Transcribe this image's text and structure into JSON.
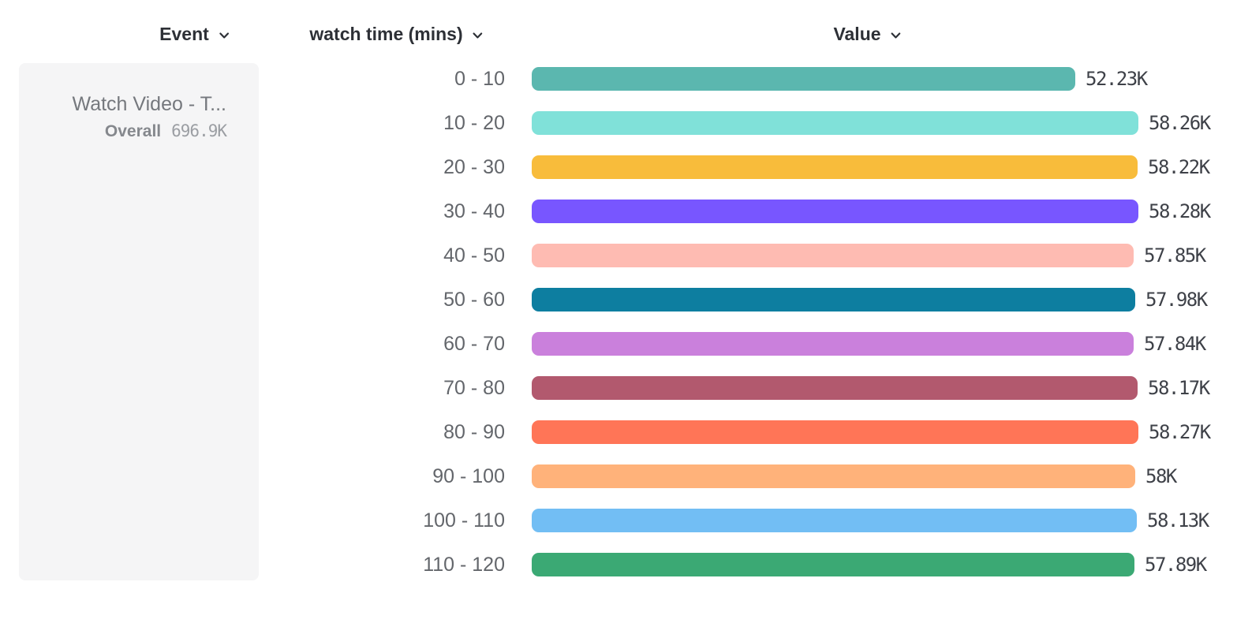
{
  "headers": {
    "items": [
      {
        "label": "Event",
        "icon": "chevron-down-icon"
      },
      {
        "label": "watch time (mins)",
        "icon": "chevron-down-icon"
      },
      {
        "label": "Value",
        "icon": "chevron-down-icon"
      }
    ]
  },
  "event_card": {
    "title": "Watch Video - T...",
    "overall_label": "Overall",
    "overall_value": "696.9K"
  },
  "chart_data": {
    "type": "bar",
    "orientation": "horizontal",
    "title": "",
    "xlabel": "Value",
    "ylabel": "watch time (mins)",
    "categories": [
      "0 - 10",
      "10 - 20",
      "20 - 30",
      "30 - 40",
      "40 - 50",
      "50 - 60",
      "60 - 70",
      "70 - 80",
      "80 - 90",
      "90 - 100",
      "100 - 110",
      "110 - 120"
    ],
    "values_thousands": [
      52.23,
      58.26,
      58.22,
      58.28,
      57.85,
      57.98,
      57.84,
      58.17,
      58.27,
      58,
      58.13,
      57.89
    ],
    "value_labels": [
      "52.23K",
      "58.26K",
      "58.22K",
      "58.28K",
      "57.85K",
      "57.98K",
      "57.84K",
      "58.17K",
      "58.27K",
      "58K",
      "58.13K",
      "57.89K"
    ],
    "colors": [
      "#5BB7AF",
      "#80E1D9",
      "#F8BC3B",
      "#7856FF",
      "#FEBBB2",
      "#0D7EA0",
      "#CA80DC",
      "#B2596E",
      "#FF7557",
      "#FFB27A",
      "#72BEF4",
      "#3BA974"
    ],
    "xlim_thousands": [
      0,
      58.28
    ],
    "grid": false,
    "legend": "none",
    "overall_total": "696.9K"
  }
}
